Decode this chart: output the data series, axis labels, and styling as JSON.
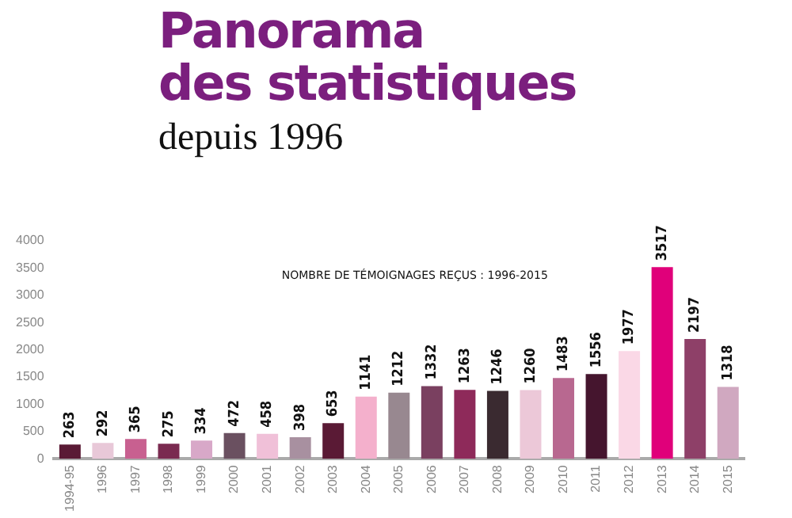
{
  "chart_data": {
    "type": "bar",
    "title": "Panorama\ndes statistiques",
    "subtitle": "depuis 1996",
    "annotations": [
      "NOMBRE DE TÉMOIGNAGES REÇUS : 1996-2015"
    ],
    "categories": [
      "1994-95",
      "1996",
      "1997",
      "1998",
      "1999",
      "2000",
      "2001",
      "2002",
      "2003",
      "2004",
      "2005",
      "2006",
      "2007",
      "2008",
      "2009",
      "2010",
      "2011",
      "2012",
      "2013",
      "2014",
      "2015"
    ],
    "values": [
      263,
      292,
      365,
      275,
      334,
      472,
      458,
      398,
      653,
      1141,
      1212,
      1332,
      1263,
      1246,
      1260,
      1483,
      1556,
      1977,
      3517,
      2197,
      1318
    ],
    "colors": [
      "#5a1a35",
      "#e8c8d8",
      "#c86090",
      "#7a2a50",
      "#d8a8c8",
      "#6a5060",
      "#f0c0d8",
      "#a890a0",
      "#5a1a35",
      "#f4b0cc",
      "#988890",
      "#7a4060",
      "#8e2a5a",
      "#3a2a30",
      "#ecc8d8",
      "#b86890",
      "#45152e",
      "#fad8e6",
      "#e0007a",
      "#8e4068",
      "#d0a8c0"
    ],
    "ylim": [
      0,
      4000
    ],
    "yticks": [
      0,
      500,
      1000,
      1500,
      2000,
      2500,
      3000,
      3500,
      4000
    ],
    "grid": false,
    "legend": false,
    "data_labels": true
  }
}
